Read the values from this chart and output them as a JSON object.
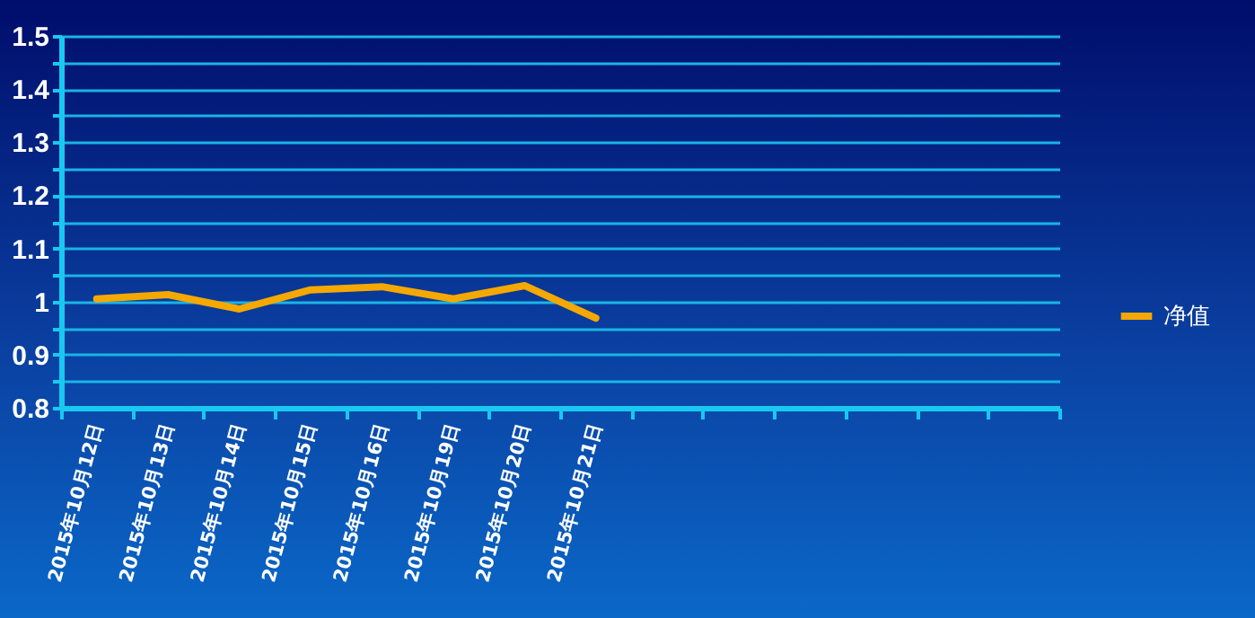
{
  "chart_data": {
    "type": "line",
    "categories": [
      "2015年10月12日",
      "2015年10月13日",
      "2015年10月14日",
      "2015年10月15日",
      "2015年10月16日",
      "2015年10月19日",
      "2015年10月20日",
      "2015年10月21日",
      null,
      null,
      null,
      null,
      null,
      null
    ],
    "series": [
      {
        "name": "净值",
        "color": "#f5a800",
        "values": [
          1.005,
          1.013,
          0.986,
          1.022,
          1.028,
          1.005,
          1.03,
          0.969,
          null,
          null,
          null,
          null,
          null,
          null
        ]
      }
    ],
    "ylim": [
      0.8,
      1.5
    ],
    "yticks": [
      0.8,
      {
        "value": 0.85,
        "label": null
      },
      0.9,
      {
        "value": 0.95,
        "label": null
      },
      1,
      {
        "value": 1.05,
        "label": null
      },
      1.1,
      {
        "value": 1.15,
        "label": null
      },
      1.2,
      {
        "value": 1.25,
        "label": null
      },
      1.3,
      {
        "value": 1.35,
        "label": null
      },
      1.4,
      {
        "value": 1.45,
        "label": null
      },
      1.5
    ],
    "grid": "y",
    "legend": "right",
    "marker": "none",
    "line_style": "solid"
  }
}
